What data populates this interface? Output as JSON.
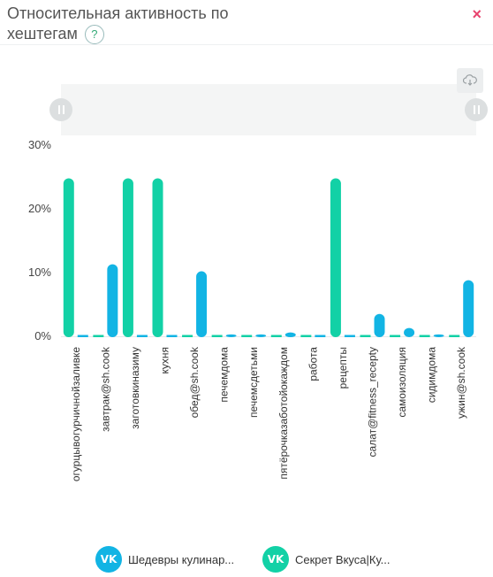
{
  "header": {
    "title": "Относительная активность по хештегам",
    "help_symbol": "?",
    "close_symbol": "×"
  },
  "icons": {
    "download": "cloud-download-icon",
    "vk_logo": "vk-logo-icon"
  },
  "colors": {
    "series1": "#12b4e4",
    "series2": "#12d1a6",
    "axis_text": "#444444",
    "close": "#e8436e"
  },
  "chart_data": {
    "type": "bar",
    "categories": [
      "огурцывогурчичнойзаливке",
      "завтрак@sh.cook",
      "заготовкиназиму",
      "кухня",
      "обед@sh.cook",
      "печемдома",
      "печемсдетьми",
      "пятёрочказаботойокаждом",
      "работа",
      "рецепты",
      "салат@fitness_recepty",
      "самоизоляция",
      "сидимдома",
      "ужин@sh.cook"
    ],
    "series": [
      {
        "name": "Шедевры кулинар...",
        "color": "#12b4e4",
        "values": [
          0,
          11.3,
          0,
          0,
          10.2,
          0.3,
          0.3,
          0.6,
          0,
          0,
          3.5,
          1.3,
          0.3,
          8.8
        ]
      },
      {
        "name": "Секрет Вкуса|Ку...",
        "color": "#12d1a6",
        "values": [
          24.8,
          0,
          24.8,
          24.8,
          0,
          0,
          0,
          0,
          0,
          24.8,
          0,
          0,
          0,
          0
        ]
      }
    ],
    "yticks": [
      "0%",
      "10%",
      "20%",
      "30%"
    ],
    "ylim": [
      0,
      30
    ],
    "grid": false,
    "legend_position": "bottom"
  }
}
